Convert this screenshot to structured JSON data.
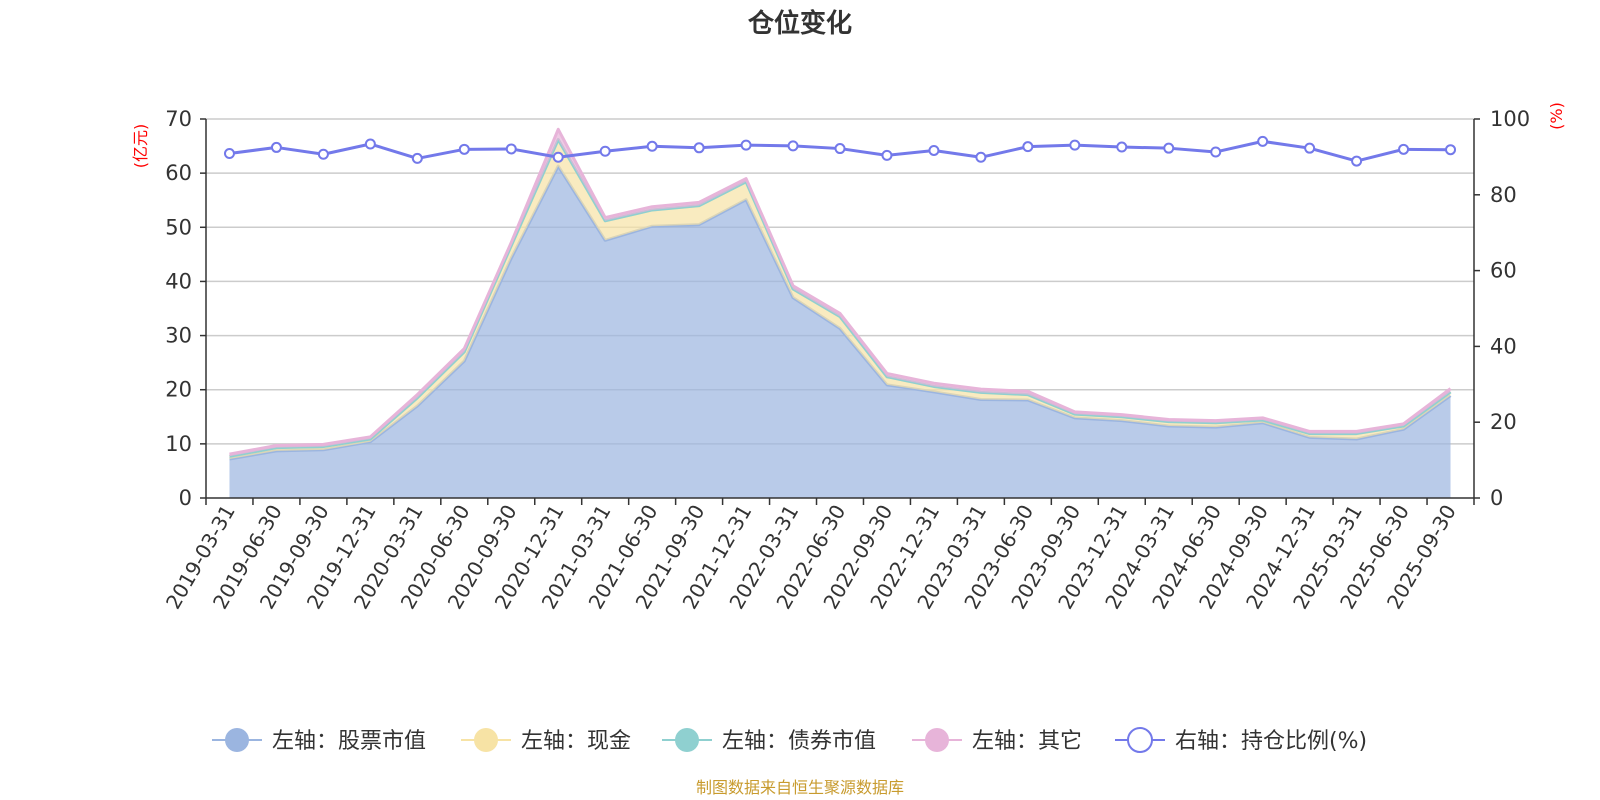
{
  "chart_data": {
    "type": "area",
    "title": "仓位变化",
    "left_axis_unit": "(亿元)",
    "right_axis_unit": "(%)",
    "ylim_left": [
      0,
      70
    ],
    "yticks_left": [
      0,
      10,
      20,
      30,
      40,
      50,
      60,
      70
    ],
    "ylim_right": [
      0,
      100
    ],
    "yticks_right": [
      0,
      20,
      40,
      60,
      80,
      100
    ],
    "grid": true,
    "legend_position": "bottom",
    "categories": [
      "2019-03-31",
      "2019-06-30",
      "2019-09-30",
      "2019-12-31",
      "2020-03-31",
      "2020-06-30",
      "2020-09-30",
      "2020-12-31",
      "2021-03-31",
      "2021-06-30",
      "2021-09-30",
      "2021-12-31",
      "2022-03-31",
      "2022-06-30",
      "2022-09-30",
      "2022-12-31",
      "2023-03-31",
      "2023-06-30",
      "2023-09-30",
      "2023-12-31",
      "2024-03-31",
      "2024-06-30",
      "2024-09-30",
      "2024-12-31",
      "2025-03-31",
      "2025-06-30",
      "2025-09-30"
    ],
    "series": [
      {
        "name": "左轴：股票市值",
        "axis": "left",
        "kind": "stacked-area",
        "color": "#9bb5e0",
        "values": [
          7.2,
          8.7,
          8.9,
          10.4,
          17.0,
          25.3,
          44.3,
          61.3,
          47.6,
          50.2,
          50.5,
          55.1,
          37.0,
          31.3,
          20.9,
          19.6,
          18.2,
          18.1,
          14.8,
          14.3,
          13.3,
          13.1,
          13.9,
          11.2,
          10.9,
          12.7,
          18.9
        ]
      },
      {
        "name": "左轴：现金",
        "axis": "left",
        "kind": "stacked-area",
        "color": "#f7e3a5",
        "values": [
          0.5,
          0.6,
          0.6,
          0.5,
          1.5,
          1.7,
          2.3,
          4.9,
          3.6,
          3.0,
          3.5,
          3.3,
          1.6,
          2.2,
          1.5,
          1.0,
          1.3,
          1.0,
          0.7,
          0.7,
          0.8,
          0.8,
          0.5,
          0.7,
          1.0,
          0.6,
          0.7
        ]
      },
      {
        "name": "左轴：债券市值",
        "axis": "left",
        "kind": "stacked-area",
        "color": "#8fd0d0",
        "values": [
          0,
          0,
          0,
          0,
          0,
          0,
          0,
          0,
          0,
          0,
          0,
          0,
          0,
          0,
          0,
          0,
          0,
          0,
          0,
          0,
          0,
          0,
          0,
          0,
          0,
          0,
          0
        ]
      },
      {
        "name": "左轴：其它",
        "axis": "left",
        "kind": "stacked-area",
        "color": "#e7b4d9",
        "values": [
          0.4,
          0.4,
          0.4,
          0.4,
          0.6,
          0.6,
          0.6,
          1.9,
          0.6,
          0.6,
          0.6,
          0.6,
          0.6,
          0.6,
          0.6,
          0.6,
          0.6,
          0.6,
          0.4,
          0.4,
          0.4,
          0.4,
          0.4,
          0.4,
          0.4,
          0.4,
          0.6
        ]
      },
      {
        "name": "右轴：持仓比例(%)",
        "axis": "right",
        "kind": "line",
        "color": "#7379ea",
        "values": [
          90.9,
          92.5,
          90.7,
          93.4,
          89.6,
          92.0,
          92.1,
          89.9,
          91.5,
          92.8,
          92.4,
          93.1,
          92.9,
          92.2,
          90.4,
          91.7,
          89.9,
          92.7,
          93.1,
          92.6,
          92.3,
          91.3,
          94.1,
          92.3,
          88.9,
          92.0,
          91.9
        ]
      }
    ]
  },
  "source_note": "制图数据来自恒生聚源数据库"
}
